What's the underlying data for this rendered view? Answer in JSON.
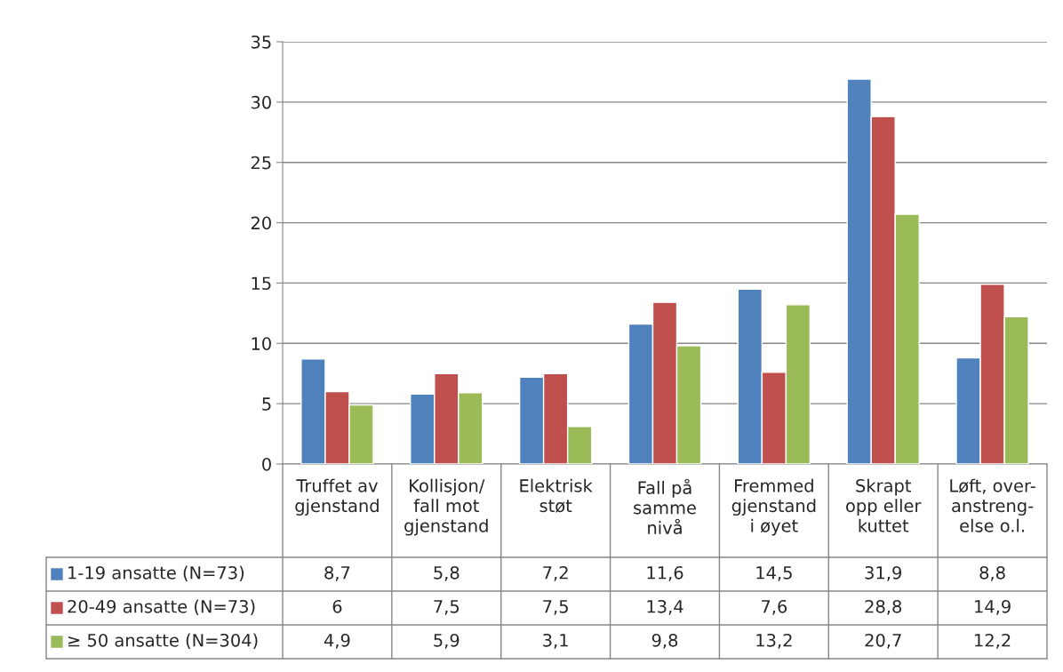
{
  "chart_data": {
    "type": "bar",
    "categories": [
      "Truffet av\ngjenstand",
      "Kollisjon/\nfall mot\ngjenstand",
      "Elektrisk\nstøt",
      "Fall på\nsamme\nnivå",
      "Fremmed\ngjenstand\ni øyet",
      "Skrapt\nopp eller\nkuttet",
      "Løft, over-\nanstreng-\nelse o.l."
    ],
    "series": [
      {
        "name": "1-19 ansatte (N=73)",
        "color": "#4f81bd",
        "values": [
          8.7,
          5.8,
          7.2,
          11.6,
          14.5,
          31.9,
          8.8
        ],
        "value_labels": [
          "8,7",
          "5,8",
          "7,2",
          "11,6",
          "14,5",
          "31,9",
          "8,8"
        ]
      },
      {
        "name": "20-49 ansatte (N=73)",
        "color": "#c0504d",
        "values": [
          6,
          7.5,
          7.5,
          13.4,
          7.6,
          28.8,
          14.9
        ],
        "value_labels": [
          "6",
          "7,5",
          "7,5",
          "13,4",
          "7,6",
          "28,8",
          "14,9"
        ]
      },
      {
        "name": "≥ 50 ansatte (N=304)",
        "color": "#9bbb59",
        "values": [
          4.9,
          5.9,
          3.1,
          9.8,
          13.2,
          20.7,
          12.2
        ],
        "value_labels": [
          "4,9",
          "5,9",
          "3,1",
          "9,8",
          "13,2",
          "20,7",
          "12,2"
        ]
      }
    ],
    "ylim": [
      0,
      35
    ],
    "yticks": [
      0,
      5,
      10,
      15,
      20,
      25,
      30,
      35
    ],
    "grid": "y",
    "legend": "bottom"
  }
}
